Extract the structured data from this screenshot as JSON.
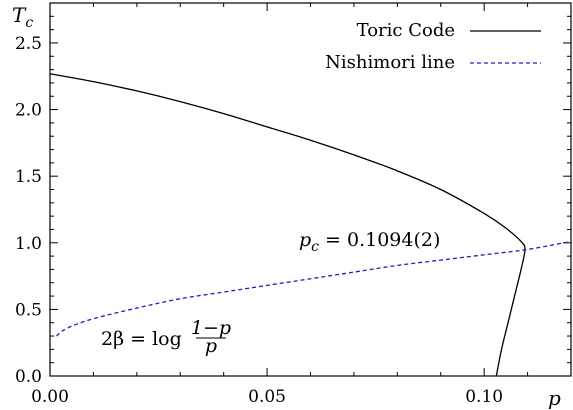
{
  "chart_data": {
    "type": "line",
    "xlabel": "p",
    "ylabel": "T_c",
    "ylabel_main": "T",
    "ylabel_sub": "c",
    "xlim": [
      0.0,
      0.12
    ],
    "ylim": [
      0.0,
      2.8
    ],
    "xticks": [
      0.0,
      0.05,
      0.1
    ],
    "xtick_labels": [
      "0.00",
      "0.05",
      "0.10"
    ],
    "yticks": [
      0.0,
      0.5,
      1.0,
      1.5,
      2.0,
      2.5
    ],
    "ytick_labels": [
      "0.0",
      "0.5",
      "1.0",
      "1.5",
      "2.0",
      "2.5"
    ],
    "grid": false,
    "legend_position": "top-right",
    "series": [
      {
        "name": "Toric Code",
        "color": "#000000",
        "style": "solid",
        "points": [
          [
            0.0,
            2.269
          ],
          [
            0.01,
            2.21
          ],
          [
            0.02,
            2.14
          ],
          [
            0.03,
            2.06
          ],
          [
            0.04,
            1.97
          ],
          [
            0.05,
            1.87
          ],
          [
            0.06,
            1.77
          ],
          [
            0.07,
            1.66
          ],
          [
            0.08,
            1.54
          ],
          [
            0.09,
            1.4
          ],
          [
            0.1,
            1.22
          ],
          [
            0.105,
            1.11
          ],
          [
            0.1085,
            1.01
          ],
          [
            0.1094,
            0.95
          ],
          [
            0.1085,
            0.8
          ],
          [
            0.107,
            0.6
          ],
          [
            0.1055,
            0.4
          ],
          [
            0.104,
            0.2
          ],
          [
            0.1028,
            0.0
          ]
        ]
      },
      {
        "name": "Nishimori line",
        "color": "#1f1fbf",
        "style": "dashed",
        "points": [
          [
            0.0015,
            0.3
          ],
          [
            0.004,
            0.36
          ],
          [
            0.01,
            0.43
          ],
          [
            0.02,
            0.51
          ],
          [
            0.03,
            0.58
          ],
          [
            0.04,
            0.63
          ],
          [
            0.05,
            0.68
          ],
          [
            0.06,
            0.73
          ],
          [
            0.07,
            0.78
          ],
          [
            0.08,
            0.83
          ],
          [
            0.09,
            0.87
          ],
          [
            0.1,
            0.91
          ],
          [
            0.11,
            0.95
          ],
          [
            0.12,
            1.01
          ]
        ]
      }
    ],
    "annotations": {
      "pc_text": "p_c = 0.1094(2)",
      "pc_main": "p",
      "pc_sub": "c",
      "pc_rest": "= 0.1094(2)",
      "nishimori_formula": "2β = log (1−p)/p",
      "formula_lhs": "2β = log",
      "formula_num": "1−p",
      "formula_den": "p"
    }
  }
}
